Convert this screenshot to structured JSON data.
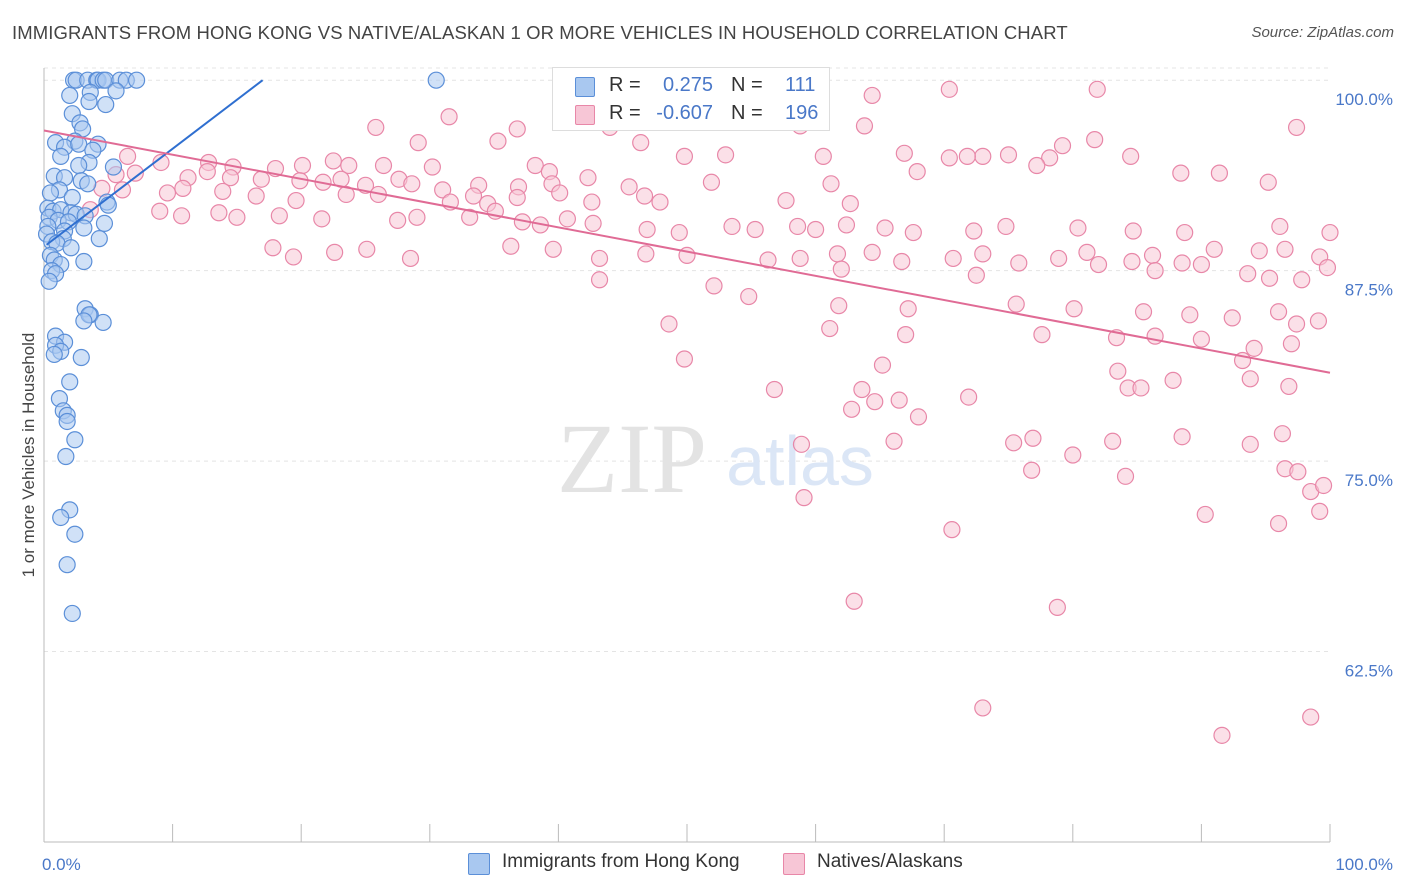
{
  "title": "IMMIGRANTS FROM HONG KONG VS NATIVE/ALASKAN 1 OR MORE VEHICLES IN HOUSEHOLD CORRELATION CHART",
  "source": "Source: ZipAtlas.com",
  "watermark": {
    "zip": "ZIP",
    "atlas": "atlas"
  },
  "legend": {
    "r_label": "R =",
    "n_label": "N =",
    "series": [
      {
        "r": "0.275",
        "n": "111"
      },
      {
        "r": "-0.607",
        "n": "196"
      }
    ]
  },
  "chart_data": {
    "type": "scatter",
    "title": "IMMIGRANTS FROM HONG KONG VS NATIVE/ALASKAN 1 OR MORE VEHICLES IN HOUSEHOLD CORRELATION CHART",
    "xlabel": "",
    "ylabel": "1 or more Vehicles in Household",
    "xlim": [
      0,
      100
    ],
    "ylim": [
      50,
      100.8
    ],
    "x_tick_labels": [
      "0.0%",
      "100.0%"
    ],
    "y_ticks": [
      62.5,
      75.0,
      87.5,
      100.0
    ],
    "y_tick_labels": [
      "62.5%",
      "75.0%",
      "87.5%",
      "100.0%"
    ],
    "grid": true,
    "series": [
      {
        "name": "Immigrants from Hong Kong",
        "color": "#5b8fd8",
        "fill": "#a9c8f0",
        "r": 0.275,
        "n": 111,
        "trend": {
          "x": [
            0.2,
            17.0
          ],
          "y": [
            89.2,
            100.0
          ],
          "color": "#2f6fd0"
        },
        "points": [
          [
            2.3,
            100
          ],
          [
            2.5,
            100
          ],
          [
            3.4,
            100
          ],
          [
            4.1,
            100
          ],
          [
            4.2,
            100
          ],
          [
            4.6,
            100
          ],
          [
            4.8,
            100
          ],
          [
            5.9,
            100
          ],
          [
            6.4,
            100
          ],
          [
            7.2,
            100
          ],
          [
            30.5,
            100
          ],
          [
            5.6,
            99.3
          ],
          [
            3.6,
            99.2
          ],
          [
            2.0,
            99.0
          ],
          [
            4.8,
            98.4
          ],
          [
            3.5,
            98.6
          ],
          [
            2.2,
            97.8
          ],
          [
            2.8,
            97.2
          ],
          [
            3.0,
            96.8
          ],
          [
            2.4,
            96.0
          ],
          [
            0.9,
            95.9
          ],
          [
            1.6,
            95.6
          ],
          [
            2.7,
            95.8
          ],
          [
            4.2,
            95.8
          ],
          [
            3.8,
            95.4
          ],
          [
            1.3,
            95.0
          ],
          [
            3.5,
            94.6
          ],
          [
            2.7,
            94.4
          ],
          [
            5.4,
            94.3
          ],
          [
            0.8,
            93.7
          ],
          [
            1.6,
            93.6
          ],
          [
            2.9,
            93.4
          ],
          [
            3.4,
            93.2
          ],
          [
            1.2,
            92.8
          ],
          [
            0.5,
            92.6
          ],
          [
            2.2,
            92.3
          ],
          [
            4.9,
            92.0
          ],
          [
            5.0,
            91.8
          ],
          [
            0.3,
            91.6
          ],
          [
            0.7,
            91.4
          ],
          [
            1.3,
            91.5
          ],
          [
            2.1,
            91.3
          ],
          [
            2.5,
            91.2
          ],
          [
            3.2,
            91.1
          ],
          [
            0.4,
            91.0
          ],
          [
            1.1,
            90.8
          ],
          [
            1.9,
            90.7
          ],
          [
            4.7,
            90.6
          ],
          [
            0.3,
            90.4
          ],
          [
            1.6,
            90.1
          ],
          [
            3.1,
            90.3
          ],
          [
            0.2,
            89.9
          ],
          [
            1.5,
            89.6
          ],
          [
            4.3,
            89.6
          ],
          [
            0.6,
            89.4
          ],
          [
            1.0,
            89.3
          ],
          [
            2.1,
            89.0
          ],
          [
            0.5,
            88.5
          ],
          [
            0.8,
            88.2
          ],
          [
            3.1,
            88.1
          ],
          [
            1.3,
            87.9
          ],
          [
            0.6,
            87.5
          ],
          [
            0.9,
            87.3
          ],
          [
            0.4,
            86.8
          ],
          [
            3.2,
            85.0
          ],
          [
            3.6,
            84.6
          ],
          [
            3.5,
            84.6
          ],
          [
            4.6,
            84.1
          ],
          [
            3.1,
            84.2
          ],
          [
            0.9,
            83.2
          ],
          [
            1.6,
            82.8
          ],
          [
            0.9,
            82.6
          ],
          [
            1.3,
            82.2
          ],
          [
            0.8,
            82.0
          ],
          [
            2.9,
            81.8
          ],
          [
            2.0,
            80.2
          ],
          [
            1.2,
            79.1
          ],
          [
            1.5,
            78.3
          ],
          [
            1.8,
            78.0
          ],
          [
            1.8,
            77.6
          ],
          [
            2.4,
            76.4
          ],
          [
            1.7,
            75.3
          ],
          [
            2.0,
            71.8
          ],
          [
            1.3,
            71.3
          ],
          [
            2.4,
            70.2
          ],
          [
            1.8,
            68.2
          ],
          [
            2.2,
            65.0
          ]
        ]
      },
      {
        "name": "Natives/Alaskans",
        "color": "#e887a8",
        "fill": "#f7c6d6",
        "r": -0.607,
        "n": 196,
        "trend": {
          "x": [
            0,
            100
          ],
          "y": [
            96.7,
            80.8
          ],
          "color": "#e06b95"
        },
        "points": [
          [
            70.4,
            99.4
          ],
          [
            81.9,
            99.4
          ],
          [
            64.4,
            99.0
          ],
          [
            44.0,
            96.9
          ],
          [
            31.5,
            97.6
          ],
          [
            42.2,
            97.4
          ],
          [
            58.8,
            97.0
          ],
          [
            36.8,
            96.8
          ],
          [
            51.9,
            97.3
          ],
          [
            63.8,
            97.0
          ],
          [
            25.8,
            96.9
          ],
          [
            29.1,
            95.9
          ],
          [
            35.3,
            96.0
          ],
          [
            46.4,
            95.9
          ],
          [
            81.7,
            96.1
          ],
          [
            73.0,
            95.0
          ],
          [
            79.2,
            95.7
          ],
          [
            84.5,
            95.0
          ],
          [
            97.4,
            96.9
          ],
          [
            6.5,
            95.0
          ],
          [
            9.1,
            94.6
          ],
          [
            12.8,
            94.6
          ],
          [
            14.7,
            94.3
          ],
          [
            18.0,
            94.2
          ],
          [
            20.1,
            94.4
          ],
          [
            22.5,
            94.7
          ],
          [
            23.7,
            94.4
          ],
          [
            26.4,
            94.4
          ],
          [
            30.2,
            94.3
          ],
          [
            38.2,
            94.4
          ],
          [
            39.3,
            94.0
          ],
          [
            49.8,
            95.0
          ],
          [
            53.0,
            95.1
          ],
          [
            60.6,
            95.0
          ],
          [
            66.9,
            95.2
          ],
          [
            70.4,
            94.9
          ],
          [
            75.0,
            95.1
          ],
          [
            78.2,
            94.9
          ],
          [
            5.6,
            93.8
          ],
          [
            7.1,
            93.9
          ],
          [
            11.2,
            93.6
          ],
          [
            12.7,
            94.0
          ],
          [
            14.5,
            93.6
          ],
          [
            16.9,
            93.5
          ],
          [
            19.9,
            93.4
          ],
          [
            21.7,
            93.3
          ],
          [
            23.1,
            93.5
          ],
          [
            25.0,
            93.1
          ],
          [
            27.6,
            93.5
          ],
          [
            28.6,
            93.2
          ],
          [
            31.0,
            92.8
          ],
          [
            33.8,
            93.1
          ],
          [
            36.9,
            93.0
          ],
          [
            39.5,
            93.2
          ],
          [
            42.3,
            93.6
          ],
          [
            45.5,
            93.0
          ],
          [
            51.9,
            93.3
          ],
          [
            61.2,
            93.2
          ],
          [
            67.9,
            94.0
          ],
          [
            71.8,
            95.0
          ],
          [
            77.2,
            94.4
          ],
          [
            91.4,
            93.9
          ],
          [
            95.2,
            93.3
          ],
          [
            88.4,
            93.9
          ],
          [
            4.5,
            92.9
          ],
          [
            6.1,
            92.8
          ],
          [
            9.6,
            92.6
          ],
          [
            10.8,
            92.9
          ],
          [
            13.9,
            92.7
          ],
          [
            16.5,
            92.4
          ],
          [
            19.6,
            92.1
          ],
          [
            23.5,
            92.5
          ],
          [
            26.0,
            92.5
          ],
          [
            31.6,
            92.0
          ],
          [
            33.4,
            92.4
          ],
          [
            34.5,
            91.9
          ],
          [
            36.8,
            92.3
          ],
          [
            40.1,
            92.6
          ],
          [
            42.6,
            92.0
          ],
          [
            46.7,
            92.4
          ],
          [
            47.9,
            92.0
          ],
          [
            57.7,
            92.1
          ],
          [
            62.7,
            91.9
          ],
          [
            3.6,
            91.5
          ],
          [
            9.0,
            91.4
          ],
          [
            10.7,
            91.1
          ],
          [
            13.6,
            91.3
          ],
          [
            15.0,
            91.0
          ],
          [
            18.3,
            91.1
          ],
          [
            21.6,
            90.9
          ],
          [
            27.5,
            90.8
          ],
          [
            29.0,
            91.0
          ],
          [
            33.1,
            91.0
          ],
          [
            35.1,
            91.4
          ],
          [
            37.2,
            90.7
          ],
          [
            38.6,
            90.5
          ],
          [
            40.7,
            90.9
          ],
          [
            42.7,
            90.6
          ],
          [
            46.9,
            90.2
          ],
          [
            49.4,
            90.0
          ],
          [
            53.5,
            90.4
          ],
          [
            55.3,
            90.2
          ],
          [
            58.6,
            90.4
          ],
          [
            60.0,
            90.2
          ],
          [
            62.4,
            90.5
          ],
          [
            65.4,
            90.3
          ],
          [
            67.6,
            90.0
          ],
          [
            72.3,
            90.1
          ],
          [
            74.8,
            90.4
          ],
          [
            80.4,
            90.3
          ],
          [
            84.7,
            90.1
          ],
          [
            88.7,
            90.0
          ],
          [
            96.1,
            90.4
          ],
          [
            100,
            90.0
          ],
          [
            17.8,
            89.0
          ],
          [
            19.4,
            88.4
          ],
          [
            22.6,
            88.7
          ],
          [
            25.1,
            88.9
          ],
          [
            28.5,
            88.3
          ],
          [
            36.3,
            89.1
          ],
          [
            39.6,
            88.9
          ],
          [
            43.2,
            88.3
          ],
          [
            46.8,
            88.6
          ],
          [
            50.0,
            88.5
          ],
          [
            56.3,
            88.2
          ],
          [
            58.8,
            88.3
          ],
          [
            61.7,
            88.6
          ],
          [
            64.4,
            88.7
          ],
          [
            66.7,
            88.1
          ],
          [
            70.7,
            88.3
          ],
          [
            73.0,
            88.6
          ],
          [
            75.8,
            88.0
          ],
          [
            78.9,
            88.3
          ],
          [
            81.1,
            88.7
          ],
          [
            84.6,
            88.1
          ],
          [
            86.2,
            88.5
          ],
          [
            88.5,
            88.0
          ],
          [
            91.0,
            88.9
          ],
          [
            94.5,
            88.8
          ],
          [
            96.5,
            88.9
          ],
          [
            99.2,
            88.4
          ],
          [
            62.0,
            87.6
          ],
          [
            72.5,
            87.2
          ],
          [
            82.0,
            87.9
          ],
          [
            86.4,
            87.5
          ],
          [
            90.0,
            87.9
          ],
          [
            93.6,
            87.3
          ],
          [
            95.3,
            87.0
          ],
          [
            97.8,
            86.9
          ],
          [
            99.8,
            87.7
          ],
          [
            43.2,
            86.9
          ],
          [
            52.1,
            86.5
          ],
          [
            54.8,
            85.8
          ],
          [
            61.8,
            85.2
          ],
          [
            67.2,
            85.0
          ],
          [
            75.6,
            85.3
          ],
          [
            80.1,
            85.0
          ],
          [
            85.5,
            84.8
          ],
          [
            89.1,
            84.6
          ],
          [
            92.4,
            84.4
          ],
          [
            96.0,
            84.8
          ],
          [
            97.4,
            84.0
          ],
          [
            99.1,
            84.2
          ],
          [
            48.6,
            84.0
          ],
          [
            61.1,
            83.7
          ],
          [
            67.0,
            83.3
          ],
          [
            77.6,
            83.3
          ],
          [
            83.4,
            83.1
          ],
          [
            86.4,
            83.2
          ],
          [
            90.0,
            83.0
          ],
          [
            94.1,
            82.4
          ],
          [
            97.0,
            82.7
          ],
          [
            49.8,
            81.7
          ],
          [
            65.2,
            81.3
          ],
          [
            93.2,
            81.6
          ],
          [
            83.5,
            80.9
          ],
          [
            87.8,
            80.3
          ],
          [
            93.8,
            80.4
          ],
          [
            56.8,
            79.7
          ],
          [
            63.6,
            79.7
          ],
          [
            71.9,
            79.2
          ],
          [
            84.3,
            79.8
          ],
          [
            85.3,
            79.8
          ],
          [
            96.8,
            79.9
          ],
          [
            62.8,
            78.4
          ],
          [
            64.6,
            78.9
          ],
          [
            66.5,
            79.0
          ],
          [
            68.0,
            77.9
          ],
          [
            76.9,
            76.5
          ],
          [
            83.1,
            76.3
          ],
          [
            88.5,
            76.6
          ],
          [
            93.8,
            76.1
          ],
          [
            96.3,
            76.8
          ],
          [
            58.9,
            76.1
          ],
          [
            66.1,
            76.3
          ],
          [
            75.4,
            76.2
          ],
          [
            80.0,
            75.4
          ],
          [
            76.8,
            74.4
          ],
          [
            84.1,
            74.0
          ],
          [
            96.5,
            74.5
          ],
          [
            97.5,
            74.3
          ],
          [
            98.5,
            73.0
          ],
          [
            99.5,
            73.4
          ],
          [
            59.1,
            72.6
          ],
          [
            90.3,
            71.5
          ],
          [
            96.0,
            70.9
          ],
          [
            99.2,
            71.7
          ],
          [
            70.6,
            70.5
          ],
          [
            63.0,
            65.8
          ],
          [
            78.8,
            65.4
          ],
          [
            73.0,
            58.8
          ],
          [
            98.5,
            58.2
          ],
          [
            91.6,
            57.0
          ]
        ]
      }
    ]
  },
  "bottom_legend": [
    "Immigrants from Hong Kong",
    "Natives/Alaskans"
  ]
}
